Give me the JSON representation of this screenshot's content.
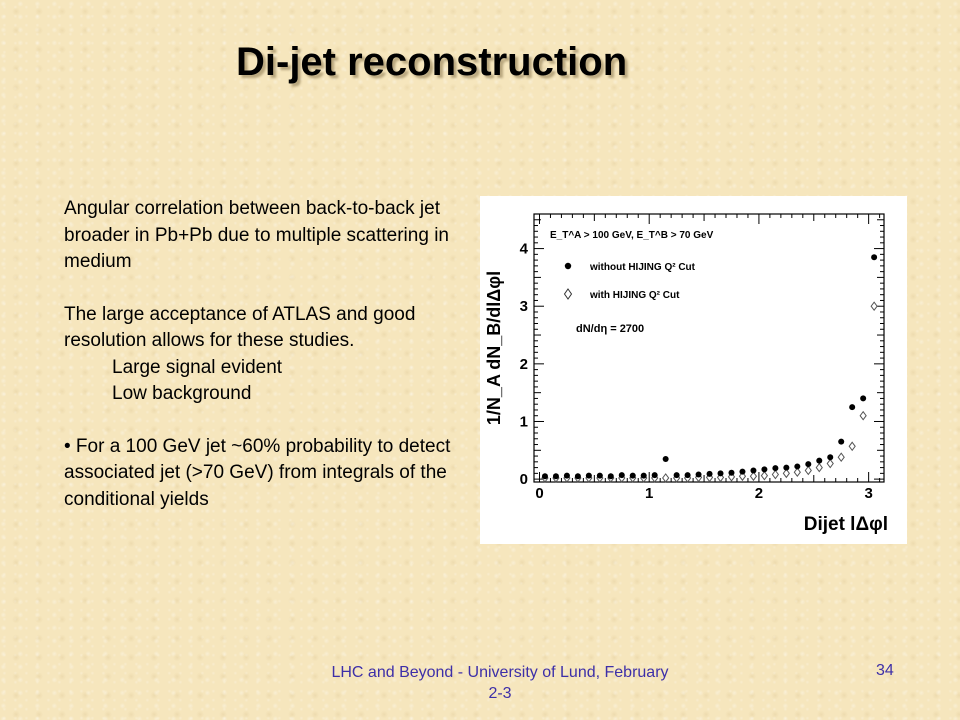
{
  "slide": {
    "title": "Di-jet reconstruction",
    "paragraphs": [
      "Angular correlation between back-to-back jet broader in Pb+Pb due to multiple scattering in medium",
      "The large acceptance of ATLAS and good resolution allows for these studies.",
      "Large signal evident",
      "Low background",
      "• For a 100 GeV jet ~60% probability to detect associated jet (>70 GeV) from integrals of the conditional yields"
    ],
    "footer": "LHC and Beyond - University of Lund, February 2-3",
    "page_number": "34"
  },
  "chart_data": {
    "type": "scatter",
    "xlabel": "Dijet lΔφl",
    "ylabel": "1/N_A dN_B/dlΔφl",
    "xlim": [
      -0.05,
      3.14
    ],
    "ylim": [
      -0.05,
      4.6
    ],
    "xticks": [
      0,
      1,
      2,
      3
    ],
    "yticks": [
      0,
      1,
      2,
      3,
      4
    ],
    "grid": false,
    "cut_label": "E_T^A > 100 GeV, E_T^B > 70 GeV",
    "multiplicity_label": "dN/dη = 2700",
    "legend_position": "top-left",
    "series": [
      {
        "name": "without HIJING Q² Cut",
        "marker": "filled-circle",
        "x": [
          0.05,
          0.15,
          0.25,
          0.35,
          0.45,
          0.55,
          0.65,
          0.75,
          0.85,
          0.95,
          1.05,
          1.15,
          1.25,
          1.35,
          1.45,
          1.55,
          1.65,
          1.75,
          1.85,
          1.95,
          2.05,
          2.15,
          2.25,
          2.35,
          2.45,
          2.55,
          2.65,
          2.75,
          2.85,
          2.95,
          3.05
        ],
        "y": [
          0.05,
          0.05,
          0.06,
          0.05,
          0.06,
          0.06,
          0.05,
          0.07,
          0.06,
          0.06,
          0.07,
          0.35,
          0.07,
          0.07,
          0.08,
          0.09,
          0.1,
          0.11,
          0.13,
          0.15,
          0.17,
          0.19,
          0.2,
          0.22,
          0.26,
          0.32,
          0.38,
          0.65,
          1.25,
          1.4,
          3.85
        ]
      },
      {
        "name": "with HIJING Q² Cut",
        "marker": "open-diamond",
        "x": [
          0.05,
          0.15,
          0.25,
          0.35,
          0.45,
          0.55,
          0.65,
          0.75,
          0.85,
          0.95,
          1.05,
          1.15,
          1.25,
          1.35,
          1.45,
          1.55,
          1.65,
          1.75,
          1.85,
          1.95,
          2.05,
          2.15,
          2.25,
          2.35,
          2.45,
          2.55,
          2.65,
          2.75,
          2.85,
          2.95,
          3.05
        ],
        "y": [
          0.02,
          0.02,
          0.02,
          0.02,
          0.02,
          0.02,
          0.02,
          0.02,
          0.02,
          0.02,
          0.02,
          0.02,
          0.02,
          0.02,
          0.03,
          0.03,
          0.03,
          0.04,
          0.05,
          0.05,
          0.06,
          0.08,
          0.1,
          0.12,
          0.15,
          0.2,
          0.27,
          0.38,
          0.57,
          1.1,
          3.0
        ]
      }
    ]
  }
}
